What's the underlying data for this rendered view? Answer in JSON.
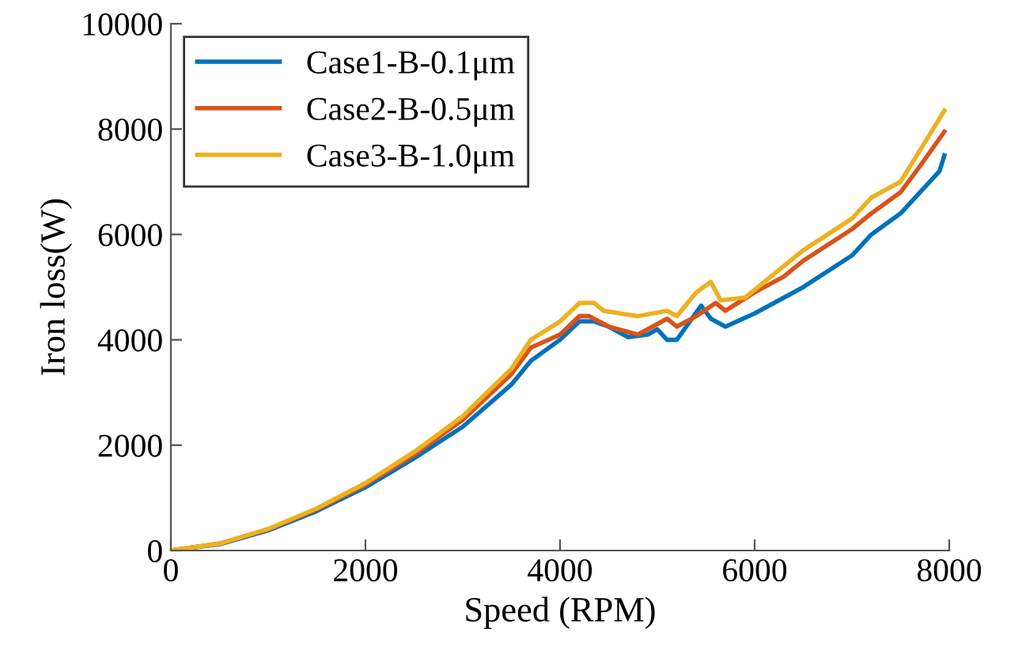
{
  "chart_data": {
    "type": "line",
    "xlabel": "Speed (RPM)",
    "ylabel": "Iron loss(W)",
    "xlim": [
      0,
      8000
    ],
    "ylim": [
      0,
      10000
    ],
    "xticks": [
      0,
      2000,
      4000,
      6000,
      8000
    ],
    "yticks": [
      0,
      2000,
      4000,
      6000,
      8000,
      10000
    ],
    "grid": false,
    "legend": "top left",
    "line_style": "solid",
    "marker": "none",
    "series": [
      {
        "name": "Case1-B-0.1μm",
        "color": "#0072bd",
        "x": [
          0,
          500,
          1000,
          1500,
          2000,
          2500,
          3000,
          3500,
          3700,
          4000,
          4200,
          4350,
          4500,
          4700,
          4900,
          5000,
          5100,
          5200,
          5450,
          5550,
          5700,
          6000,
          6200,
          6500,
          7000,
          7200,
          7500,
          7700,
          7900,
          7950
        ],
        "values": [
          0,
          120,
          380,
          750,
          1200,
          1750,
          2350,
          3150,
          3600,
          4000,
          4350,
          4350,
          4250,
          4050,
          4100,
          4200,
          4000,
          4000,
          4650,
          4400,
          4250,
          4500,
          4700,
          5000,
          5600,
          6000,
          6400,
          6800,
          7200,
          7500
        ]
      },
      {
        "name": "Case2-B-0.5μm",
        "color": "#d95319",
        "x": [
          0,
          500,
          1000,
          1500,
          2000,
          2500,
          3000,
          3500,
          3700,
          4000,
          4200,
          4300,
          4500,
          4800,
          5100,
          5200,
          5400,
          5600,
          5700,
          6000,
          6300,
          6500,
          7000,
          7200,
          7500,
          7700,
          7950
        ],
        "values": [
          0,
          130,
          400,
          780,
          1250,
          1820,
          2480,
          3350,
          3850,
          4100,
          4450,
          4450,
          4250,
          4100,
          4400,
          4250,
          4450,
          4700,
          4550,
          4900,
          5200,
          5500,
          6100,
          6400,
          6800,
          7300,
          7950
        ]
      },
      {
        "name": "Case3-B-1.0μm",
        "color": "#edb120",
        "x": [
          0,
          500,
          1000,
          1500,
          2000,
          2500,
          3000,
          3500,
          3700,
          4000,
          4200,
          4350,
          4450,
          4800,
          5100,
          5200,
          5400,
          5550,
          5650,
          5900,
          6200,
          6500,
          7000,
          7200,
          7500,
          7700,
          7950
        ],
        "values": [
          0,
          130,
          410,
          800,
          1280,
          1870,
          2550,
          3450,
          4000,
          4350,
          4700,
          4700,
          4550,
          4450,
          4550,
          4450,
          4900,
          5100,
          4750,
          4800,
          5250,
          5700,
          6300,
          6700,
          7000,
          7600,
          8350
        ]
      }
    ]
  }
}
